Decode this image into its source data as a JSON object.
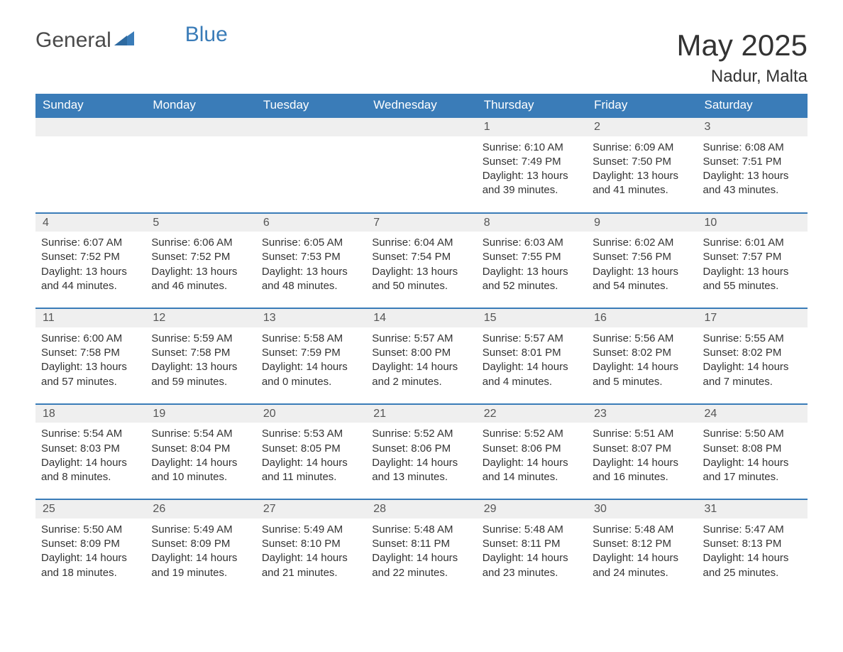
{
  "brand": {
    "part1": "General",
    "part2": "Blue"
  },
  "title": "May 2025",
  "location": "Nadur, Malta",
  "colors": {
    "header_bg": "#3a7cb8",
    "header_text": "#ffffff",
    "daynum_bg": "#efefef",
    "border": "#3a7cb8",
    "body_text": "#333333",
    "logo_gray": "#4a4a4a",
    "logo_blue": "#3a7cb8",
    "background": "#ffffff"
  },
  "typography": {
    "title_fontsize": 42,
    "subtitle_fontsize": 24,
    "header_fontsize": 17,
    "cell_fontsize": 15,
    "font_family": "Arial, Helvetica, sans-serif"
  },
  "layout": {
    "columns": 7,
    "weeks": 5,
    "first_day_column": 4
  },
  "weekdays": [
    "Sunday",
    "Monday",
    "Tuesday",
    "Wednesday",
    "Thursday",
    "Friday",
    "Saturday"
  ],
  "days": [
    {
      "n": "1",
      "sunrise": "Sunrise: 6:10 AM",
      "sunset": "Sunset: 7:49 PM",
      "daylight": "Daylight: 13 hours and 39 minutes."
    },
    {
      "n": "2",
      "sunrise": "Sunrise: 6:09 AM",
      "sunset": "Sunset: 7:50 PM",
      "daylight": "Daylight: 13 hours and 41 minutes."
    },
    {
      "n": "3",
      "sunrise": "Sunrise: 6:08 AM",
      "sunset": "Sunset: 7:51 PM",
      "daylight": "Daylight: 13 hours and 43 minutes."
    },
    {
      "n": "4",
      "sunrise": "Sunrise: 6:07 AM",
      "sunset": "Sunset: 7:52 PM",
      "daylight": "Daylight: 13 hours and 44 minutes."
    },
    {
      "n": "5",
      "sunrise": "Sunrise: 6:06 AM",
      "sunset": "Sunset: 7:52 PM",
      "daylight": "Daylight: 13 hours and 46 minutes."
    },
    {
      "n": "6",
      "sunrise": "Sunrise: 6:05 AM",
      "sunset": "Sunset: 7:53 PM",
      "daylight": "Daylight: 13 hours and 48 minutes."
    },
    {
      "n": "7",
      "sunrise": "Sunrise: 6:04 AM",
      "sunset": "Sunset: 7:54 PM",
      "daylight": "Daylight: 13 hours and 50 minutes."
    },
    {
      "n": "8",
      "sunrise": "Sunrise: 6:03 AM",
      "sunset": "Sunset: 7:55 PM",
      "daylight": "Daylight: 13 hours and 52 minutes."
    },
    {
      "n": "9",
      "sunrise": "Sunrise: 6:02 AM",
      "sunset": "Sunset: 7:56 PM",
      "daylight": "Daylight: 13 hours and 54 minutes."
    },
    {
      "n": "10",
      "sunrise": "Sunrise: 6:01 AM",
      "sunset": "Sunset: 7:57 PM",
      "daylight": "Daylight: 13 hours and 55 minutes."
    },
    {
      "n": "11",
      "sunrise": "Sunrise: 6:00 AM",
      "sunset": "Sunset: 7:58 PM",
      "daylight": "Daylight: 13 hours and 57 minutes."
    },
    {
      "n": "12",
      "sunrise": "Sunrise: 5:59 AM",
      "sunset": "Sunset: 7:58 PM",
      "daylight": "Daylight: 13 hours and 59 minutes."
    },
    {
      "n": "13",
      "sunrise": "Sunrise: 5:58 AM",
      "sunset": "Sunset: 7:59 PM",
      "daylight": "Daylight: 14 hours and 0 minutes."
    },
    {
      "n": "14",
      "sunrise": "Sunrise: 5:57 AM",
      "sunset": "Sunset: 8:00 PM",
      "daylight": "Daylight: 14 hours and 2 minutes."
    },
    {
      "n": "15",
      "sunrise": "Sunrise: 5:57 AM",
      "sunset": "Sunset: 8:01 PM",
      "daylight": "Daylight: 14 hours and 4 minutes."
    },
    {
      "n": "16",
      "sunrise": "Sunrise: 5:56 AM",
      "sunset": "Sunset: 8:02 PM",
      "daylight": "Daylight: 14 hours and 5 minutes."
    },
    {
      "n": "17",
      "sunrise": "Sunrise: 5:55 AM",
      "sunset": "Sunset: 8:02 PM",
      "daylight": "Daylight: 14 hours and 7 minutes."
    },
    {
      "n": "18",
      "sunrise": "Sunrise: 5:54 AM",
      "sunset": "Sunset: 8:03 PM",
      "daylight": "Daylight: 14 hours and 8 minutes."
    },
    {
      "n": "19",
      "sunrise": "Sunrise: 5:54 AM",
      "sunset": "Sunset: 8:04 PM",
      "daylight": "Daylight: 14 hours and 10 minutes."
    },
    {
      "n": "20",
      "sunrise": "Sunrise: 5:53 AM",
      "sunset": "Sunset: 8:05 PM",
      "daylight": "Daylight: 14 hours and 11 minutes."
    },
    {
      "n": "21",
      "sunrise": "Sunrise: 5:52 AM",
      "sunset": "Sunset: 8:06 PM",
      "daylight": "Daylight: 14 hours and 13 minutes."
    },
    {
      "n": "22",
      "sunrise": "Sunrise: 5:52 AM",
      "sunset": "Sunset: 8:06 PM",
      "daylight": "Daylight: 14 hours and 14 minutes."
    },
    {
      "n": "23",
      "sunrise": "Sunrise: 5:51 AM",
      "sunset": "Sunset: 8:07 PM",
      "daylight": "Daylight: 14 hours and 16 minutes."
    },
    {
      "n": "24",
      "sunrise": "Sunrise: 5:50 AM",
      "sunset": "Sunset: 8:08 PM",
      "daylight": "Daylight: 14 hours and 17 minutes."
    },
    {
      "n": "25",
      "sunrise": "Sunrise: 5:50 AM",
      "sunset": "Sunset: 8:09 PM",
      "daylight": "Daylight: 14 hours and 18 minutes."
    },
    {
      "n": "26",
      "sunrise": "Sunrise: 5:49 AM",
      "sunset": "Sunset: 8:09 PM",
      "daylight": "Daylight: 14 hours and 19 minutes."
    },
    {
      "n": "27",
      "sunrise": "Sunrise: 5:49 AM",
      "sunset": "Sunset: 8:10 PM",
      "daylight": "Daylight: 14 hours and 21 minutes."
    },
    {
      "n": "28",
      "sunrise": "Sunrise: 5:48 AM",
      "sunset": "Sunset: 8:11 PM",
      "daylight": "Daylight: 14 hours and 22 minutes."
    },
    {
      "n": "29",
      "sunrise": "Sunrise: 5:48 AM",
      "sunset": "Sunset: 8:11 PM",
      "daylight": "Daylight: 14 hours and 23 minutes."
    },
    {
      "n": "30",
      "sunrise": "Sunrise: 5:48 AM",
      "sunset": "Sunset: 8:12 PM",
      "daylight": "Daylight: 14 hours and 24 minutes."
    },
    {
      "n": "31",
      "sunrise": "Sunrise: 5:47 AM",
      "sunset": "Sunset: 8:13 PM",
      "daylight": "Daylight: 14 hours and 25 minutes."
    }
  ]
}
